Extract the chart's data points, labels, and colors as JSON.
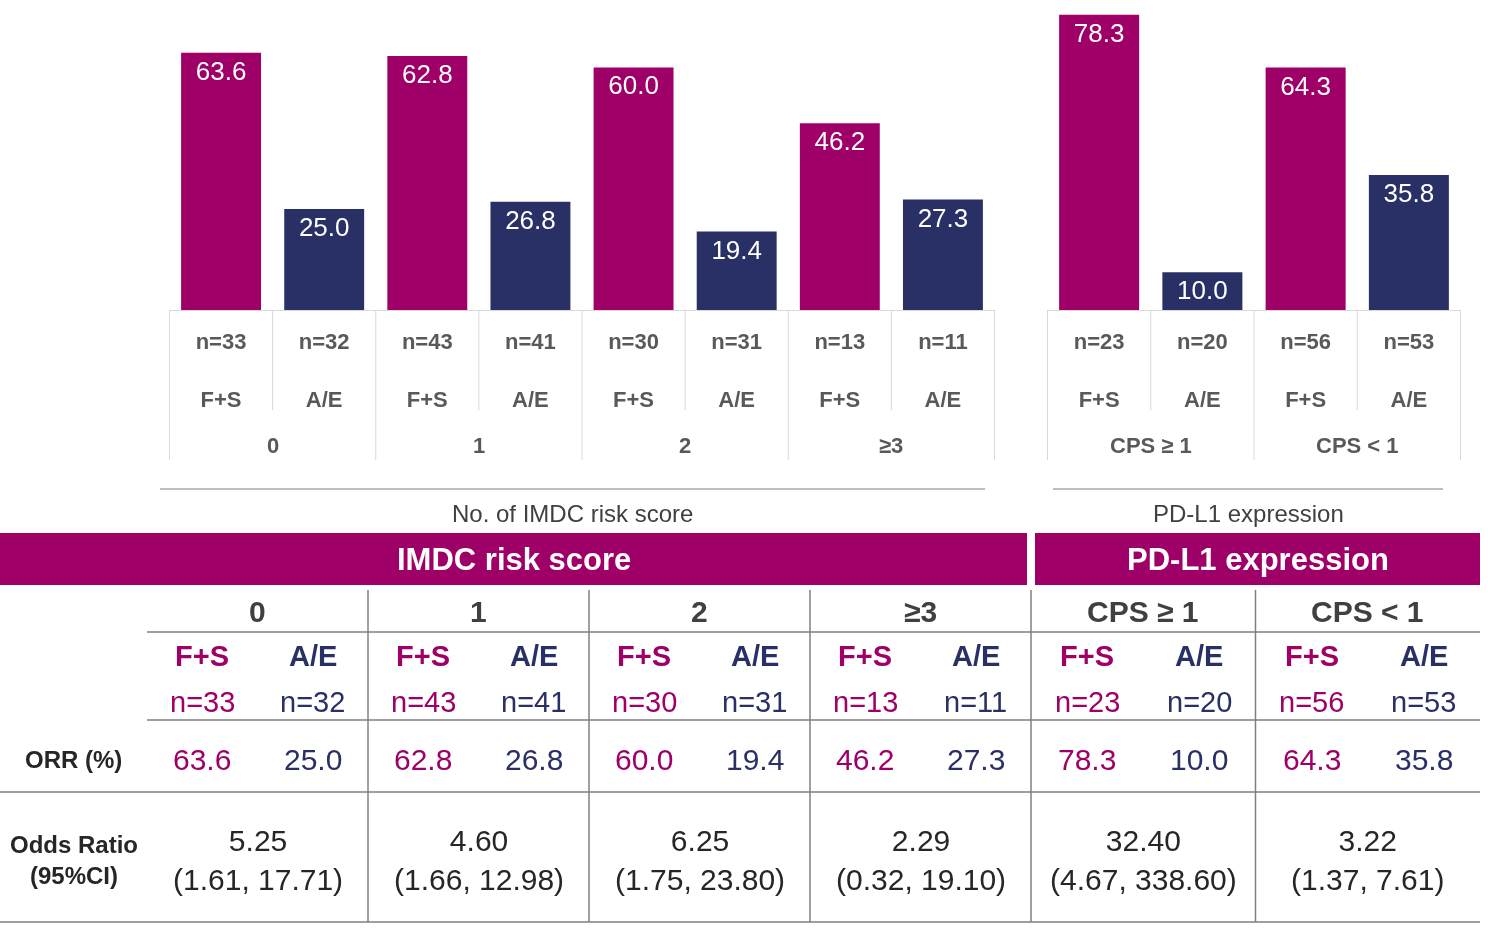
{
  "chart_data": [
    {
      "type": "bar",
      "xlabel": "No. of IMDC risk score",
      "categories": [
        "n=33\nF+S",
        "n=32\nA/E",
        "n=43\nF+S",
        "n=41\nA/E",
        "n=30\nF+S",
        "n=31\nA/E",
        "n=13\nF+S",
        "n=11\nA/E"
      ],
      "values": [
        63.6,
        25.0,
        62.8,
        26.8,
        60.0,
        19.4,
        46.2,
        27.3
      ],
      "value_labels": [
        "63.6",
        "25.0",
        "62.8",
        "26.8",
        "60.0",
        "19.4",
        "46.2",
        "27.3"
      ],
      "colors": [
        "#9e0068",
        "#283066",
        "#9e0068",
        "#283066",
        "#9e0068",
        "#283066",
        "#9e0068",
        "#283066"
      ],
      "annotations": [
        "0",
        "1",
        "2",
        "≥3"
      ]
    },
    {
      "type": "bar",
      "xlabel": "PD-L1 expression",
      "categories": [
        "n=23\nF+S",
        "n=20\nA/E",
        "n=56\nF+S",
        "n=53\nA/E"
      ],
      "values": [
        78.3,
        10.0,
        64.3,
        35.8
      ],
      "value_labels": [
        "78.3",
        "10.0",
        "64.3",
        "35.8"
      ],
      "colors": [
        "#9e0068",
        "#283066",
        "#9e0068",
        "#283066"
      ],
      "annotations": [
        "CPS ≥ 1",
        "CPS < 1"
      ]
    },
    {
      "type": "other",
      "title": "IMDC risk score",
      "categories": [
        "0",
        "1",
        "2",
        "≥3"
      ],
      "y_categories": [
        null,
        null,
        "ORR (%)",
        "Odds Ratio\n(95%CI)"
      ],
      "cell_labels": [
        [
          "F+S",
          "A/E",
          "F+S",
          "A/E",
          "F+S",
          "A/E",
          "F+S",
          "A/E"
        ],
        [
          "n=33",
          "n=32",
          "n=43",
          "n=41",
          "n=30",
          "n=31",
          "n=13",
          "n=11"
        ],
        [
          "63.6",
          "25.0",
          "62.8",
          "26.8",
          "60.0",
          "19.4",
          "46.2",
          "27.3"
        ],
        [
          "5.25\n(1.61, 17.71)",
          "4.60\n(1.66, 12.98)",
          "6.25\n(1.75, 23.80)",
          "2.29\n(0.32, 19.10)"
        ]
      ],
      "colors": [
        "#9e0068",
        "#283066",
        "#9e0068",
        "#283066",
        "#9e0068",
        "#283066",
        "#9e0068",
        "#283066"
      ]
    },
    {
      "type": "other",
      "title": "PD-L1 expression",
      "categories": [
        "CPS ≥ 1",
        "CPS < 1"
      ],
      "cell_labels": [
        [
          "F+S",
          "A/E",
          "F+S",
          "A/E"
        ],
        [
          "n=23",
          "n=20",
          "n=56",
          "n=53"
        ],
        [
          "78.3",
          "10.0",
          "64.3",
          "35.8"
        ],
        [
          "32.40\n(4.67, 338.60)",
          "3.22\n(1.37, 7.61)"
        ]
      ],
      "colors": [
        "#9e0068",
        "#283066",
        "#9e0068",
        "#283066"
      ]
    }
  ]
}
